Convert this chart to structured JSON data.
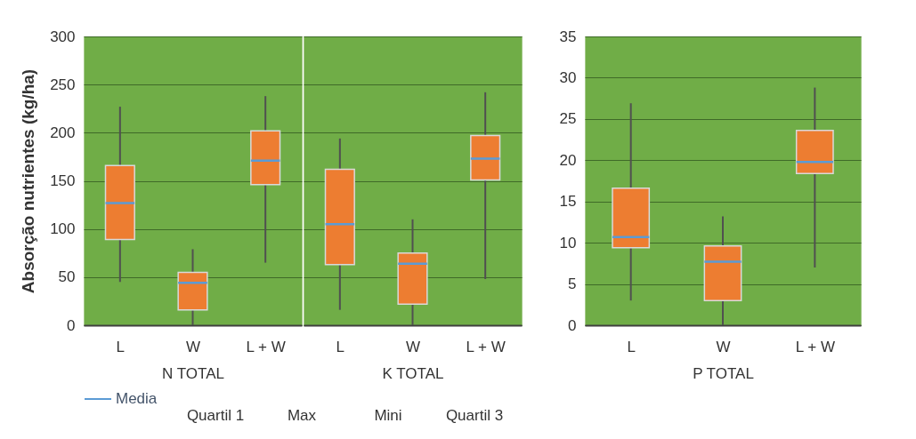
{
  "chart_data": [
    {
      "type": "box",
      "xlabel": "N TOTAL",
      "ylabel": "Absorção nutrientes (kg/ha)",
      "categories": [
        "L",
        "W",
        "L + W"
      ],
      "ylim": [
        0,
        300
      ],
      "yticks": [
        0,
        50,
        100,
        150,
        200,
        250,
        300
      ],
      "grid": true,
      "series": [
        {
          "color": "#ed7d31",
          "boxes": [
            {
              "low": 45,
              "q1": 89,
              "median": 127,
              "q3": 166,
              "high": 227
            },
            {
              "low": 0,
              "q1": 16,
              "median": 44,
              "q3": 55,
              "high": 79
            },
            {
              "low": 65,
              "q1": 146,
              "median": 171,
              "q3": 202,
              "high": 238
            }
          ]
        }
      ],
      "annotations": [
        "Quartil 1",
        "Max",
        "Mini",
        "Quartil 3"
      ]
    },
    {
      "type": "box",
      "xlabel": "K TOTAL",
      "categories": [
        "L",
        "W",
        "L + W"
      ],
      "ylim": [
        0,
        300
      ],
      "yticks": [
        0,
        50,
        100,
        150,
        200,
        250,
        300
      ],
      "grid": true,
      "tick_labels": "x",
      "series": [
        {
          "color": "#ed7d31",
          "boxes": [
            {
              "low": 16,
              "q1": 63,
              "median": 105,
              "q3": 162,
              "high": 194
            },
            {
              "low": 0,
              "q1": 22,
              "median": 64,
              "q3": 75,
              "high": 110
            },
            {
              "low": 48,
              "q1": 151,
              "median": 173,
              "q3": 197,
              "high": 242
            }
          ]
        }
      ]
    },
    {
      "type": "box",
      "xlabel": "P TOTAL",
      "categories": [
        "L",
        "W",
        "L + W"
      ],
      "ylim": [
        0,
        35
      ],
      "yticks": [
        0,
        5,
        10,
        15,
        20,
        25,
        30,
        35
      ],
      "grid": true,
      "legend": "bottom",
      "series": [
        {
          "name": "Media",
          "color": "#ed7d31",
          "boxes": [
            {
              "low": 3.0,
              "q1": 9.4,
              "median": 10.7,
              "q3": 16.6,
              "high": 26.9
            },
            {
              "low": 0,
              "q1": 3.0,
              "median": 7.7,
              "q3": 9.6,
              "high": 13.2
            },
            {
              "low": 7.0,
              "q1": 18.4,
              "median": 19.8,
              "q3": 23.6,
              "high": 28.8
            }
          ]
        }
      ]
    }
  ]
}
